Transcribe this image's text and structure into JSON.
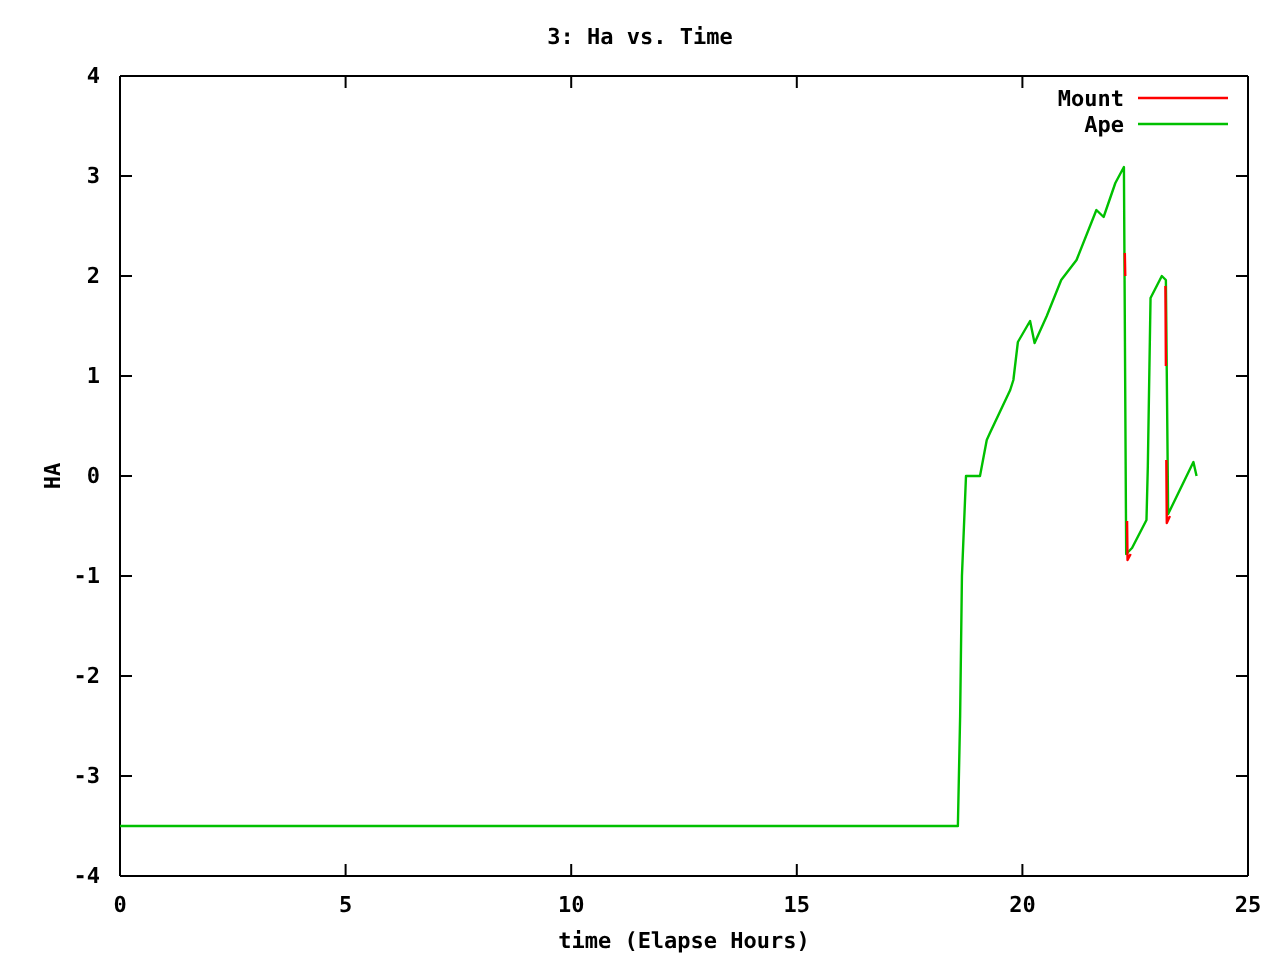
{
  "chart_data": {
    "type": "line",
    "title": "3: Ha vs. Time",
    "xlabel": "time (Elapse Hours)",
    "ylabel": "HA",
    "xlim": [
      0,
      25
    ],
    "xticks": [
      0,
      5,
      10,
      15,
      20,
      25
    ],
    "ylim": [
      -4,
      4
    ],
    "yticks": [
      -4,
      -3,
      -2,
      -1,
      0,
      1,
      2,
      3,
      4
    ],
    "legend": "top right",
    "grid": false,
    "series": [
      {
        "name": "Mount",
        "color": "#ff0000",
        "x": [
          22.27,
          22.28,
          22.29,
          22.32,
          22.33,
          22.4,
          22.6,
          23.17,
          23.18,
          23.185,
          23.19,
          23.2,
          23.27
        ],
        "values": [
          2.23,
          2.0,
          null,
          -0.45,
          -0.84,
          -0.78,
          null,
          1.9,
          1.1,
          null,
          0.16,
          -0.47,
          -0.4
        ]
      },
      {
        "name": "Ape",
        "color": "#00c000",
        "x": [
          0,
          18.57,
          18.62,
          18.66,
          18.75,
          19.06,
          19.21,
          19.28,
          19.73,
          19.8,
          19.9,
          20.17,
          20.27,
          20.54,
          20.86,
          21.2,
          21.64,
          21.8,
          22.06,
          22.25,
          22.3,
          22.43,
          22.75,
          22.78,
          22.84,
          23.09,
          23.18,
          23.23,
          23.79,
          23.86
        ],
        "values": [
          -3.5,
          -3.5,
          -2.4,
          -1.0,
          0,
          0,
          0.36,
          0.43,
          0.86,
          0.96,
          1.34,
          1.55,
          1.33,
          1.6,
          1.96,
          2.16,
          2.66,
          2.59,
          2.93,
          3.09,
          -0.78,
          -0.72,
          -0.44,
          0.1,
          1.78,
          2.0,
          1.96,
          -0.38,
          0.14,
          0.0
        ]
      }
    ]
  }
}
